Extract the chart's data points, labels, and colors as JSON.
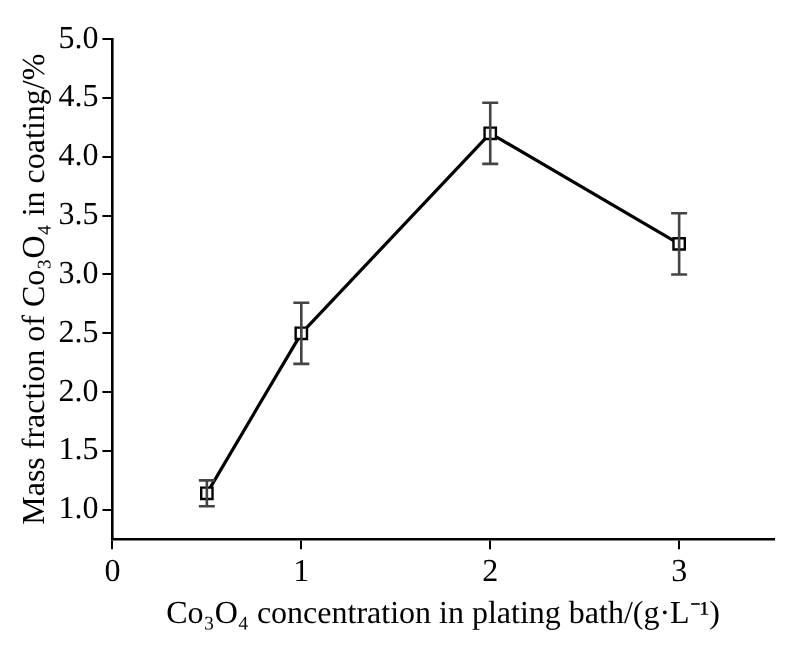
{
  "chart_data": {
    "type": "line",
    "xlabel": "Co₃O₄ concentration in plating bath/(g·L⁻¹)",
    "ylabel": "Mass fraction of Co₃O₄ in coating/%",
    "x": [
      0.5,
      1,
      2,
      3
    ],
    "series": [
      {
        "color": "#000000",
        "values": [
          1.14,
          2.5,
          4.2,
          3.26
        ],
        "errors": [
          0.11,
          0.26,
          0.26,
          0.26
        ]
      }
    ],
    "xlim": [
      0,
      3.5
    ],
    "xticks": [
      0,
      1,
      2,
      3
    ],
    "ylim": [
      0.75,
      5.0
    ],
    "yticks": [
      {
        "value": 1,
        "label": "1.0"
      },
      1.5,
      {
        "value": 2,
        "label": "2.0"
      },
      2.5,
      {
        "value": 3,
        "label": "3.0"
      },
      3.5,
      {
        "value": 4,
        "label": "4.0"
      },
      4.5,
      {
        "value": 5,
        "label": "5.0"
      }
    ],
    "grid": false,
    "legend": false,
    "marker": "square",
    "line_style": "solid"
  }
}
